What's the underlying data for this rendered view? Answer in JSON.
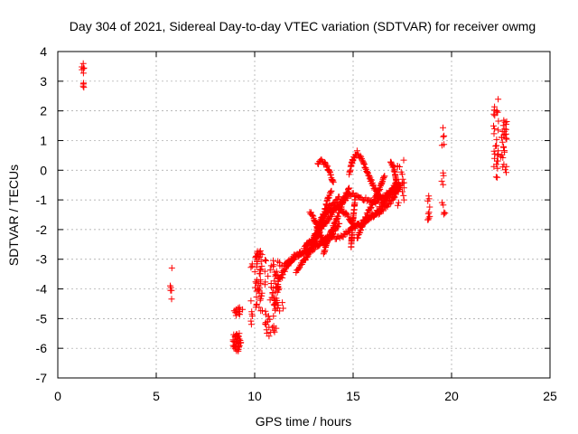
{
  "chart_data": {
    "type": "scatter",
    "title": "Day 304 of 2021, Sidereal Day-to-day VTEC variation (SDTVAR) for receiver owmg",
    "xlabel": "GPS time / hours",
    "ylabel": "SDTVAR / TECUs",
    "xlim": [
      0,
      25
    ],
    "ylim": [
      -7,
      4
    ],
    "xticks": [
      0,
      5,
      10,
      15,
      20,
      25
    ],
    "yticks": [
      -7,
      -6,
      -5,
      -4,
      -3,
      -2,
      -1,
      0,
      1,
      2,
      3,
      4
    ],
    "grid": true,
    "marker": "plus",
    "color": "#ff0000",
    "series": [
      {
        "name": "SDTVAR",
        "clusters": [
          {
            "x": [
              1.2,
              1.35
            ],
            "y": [
              2.6,
              3.6
            ],
            "n": 10
          },
          {
            "x": [
              5.7,
              5.8
            ],
            "y": [
              -4.6,
              -3.1
            ],
            "n": 6
          },
          {
            "x": [
              8.9,
              9.3
            ],
            "y": [
              -6.1,
              -5.5
            ],
            "n": 45
          },
          {
            "x": [
              8.9,
              9.4
            ],
            "y": [
              -4.9,
              -4.6
            ],
            "n": 14
          },
          {
            "x": [
              9.8,
              9.9
            ],
            "y": [
              -5.2,
              -4.3
            ],
            "n": 6
          },
          {
            "x": [
              9.8,
              9.9
            ],
            "y": [
              -3.3,
              -3.1
            ],
            "n": 3
          },
          {
            "x": [
              10.0,
              10.4
            ],
            "y": [
              -4.8,
              -2.7
            ],
            "n": 50
          },
          {
            "x": [
              10.5,
              11.2
            ],
            "y": [
              -5.6,
              -3.0
            ],
            "n": 55
          },
          {
            "x": [
              11.0,
              11.5
            ],
            "y": [
              -4.8,
              -3.0
            ],
            "n": 25
          },
          {
            "x": [
              17.2,
              17.6
            ],
            "y": [
              -1.2,
              0.4
            ],
            "n": 20
          },
          {
            "x": [
              18.7,
              18.9
            ],
            "y": [
              -1.7,
              -0.8
            ],
            "n": 10
          },
          {
            "x": [
              19.5,
              19.7
            ],
            "y": [
              -1.5,
              1.5
            ],
            "n": 14
          },
          {
            "x": [
              22.1,
              22.4
            ],
            "y": [
              -0.3,
              2.4
            ],
            "n": 30
          },
          {
            "x": [
              22.5,
              22.8
            ],
            "y": [
              -0.1,
              1.7
            ],
            "n": 30
          }
        ],
        "tracks": [
          {
            "x": [
              11.2,
              12.0,
              12.7,
              13.2,
              13.8,
              14.5,
              15.0,
              15.5,
              16.2,
              16.8,
              17.3
            ],
            "y": [
              -3.7,
              -2.9,
              -2.7,
              -2.5,
              -2.3,
              -2.2,
              -1.9,
              -1.8,
              -1.4,
              -0.9,
              -0.6
            ]
          },
          {
            "x": [
              11.5,
              12.3,
              12.9,
              13.4,
              13.9,
              14.3
            ],
            "y": [
              -3.2,
              -2.8,
              -2.7,
              -2.4,
              -2.2,
              -1.8
            ]
          },
          {
            "x": [
              12.5,
              13.0,
              13.4,
              13.8,
              14.3
            ],
            "y": [
              -2.6,
              -2.3,
              -1.6,
              -1.2,
              -0.9
            ]
          },
          {
            "x": [
              12.6,
              13.0,
              13.5,
              14.2,
              14.9,
              15.3,
              16.1,
              16.7,
              17.3
            ],
            "y": [
              -2.5,
              -2.3,
              -1.9,
              -1.2,
              -0.8,
              -0.9,
              -1.1,
              -0.8,
              -0.5
            ]
          },
          {
            "x": [
              13.0,
              13.3,
              13.7,
              13.9
            ],
            "y": [
              -2.5,
              -2.0,
              -1.0,
              -0.7
            ]
          },
          {
            "x": [
              12.8,
              13.0,
              13.3,
              13.6
            ],
            "y": [
              -1.4,
              -1.6,
              -2.1,
              -2.6
            ]
          },
          {
            "x": [
              12.1,
              12.7,
              13.2,
              13.6,
              14.2,
              14.8,
              15.1,
              15.6,
              16.4,
              17.0,
              17.4
            ],
            "y": [
              -3.4,
              -2.9,
              -2.1,
              -1.5,
              -1.2,
              -1.6,
              -1.9,
              -1.7,
              -1.4,
              -1.0,
              -0.5
            ]
          },
          {
            "x": [
              13.2,
              13.4,
              13.7,
              14.0
            ],
            "y": [
              0.2,
              0.35,
              0.1,
              -0.4
            ]
          },
          {
            "x": [
              14.8,
              15.0,
              15.2,
              15.5,
              16.0,
              16.5,
              16.9,
              17.2
            ],
            "y": [
              -0.1,
              0.4,
              0.6,
              0.3,
              -0.5,
              -1.1,
              -0.7,
              -0.4
            ]
          },
          {
            "x": [
              15.2,
              15.5,
              15.7,
              16.0,
              16.3,
              16.6
            ],
            "y": [
              -2.3,
              -1.8,
              -1.5,
              -1.1,
              -0.7,
              -0.2
            ]
          },
          {
            "x": [
              13.5,
              13.8,
              14.2,
              14.5,
              14.8
            ],
            "y": [
              -2.8,
              -2.2,
              -1.6,
              -1.0,
              -0.6
            ]
          },
          {
            "x": [
              14.9,
              15.0,
              15.1
            ],
            "y": [
              -2.6,
              -1.6,
              -1.0
            ]
          },
          {
            "x": [
              16.9,
              17.1,
              17.3
            ],
            "y": [
              0.3,
              0.0,
              -0.7
            ]
          }
        ]
      }
    ]
  }
}
